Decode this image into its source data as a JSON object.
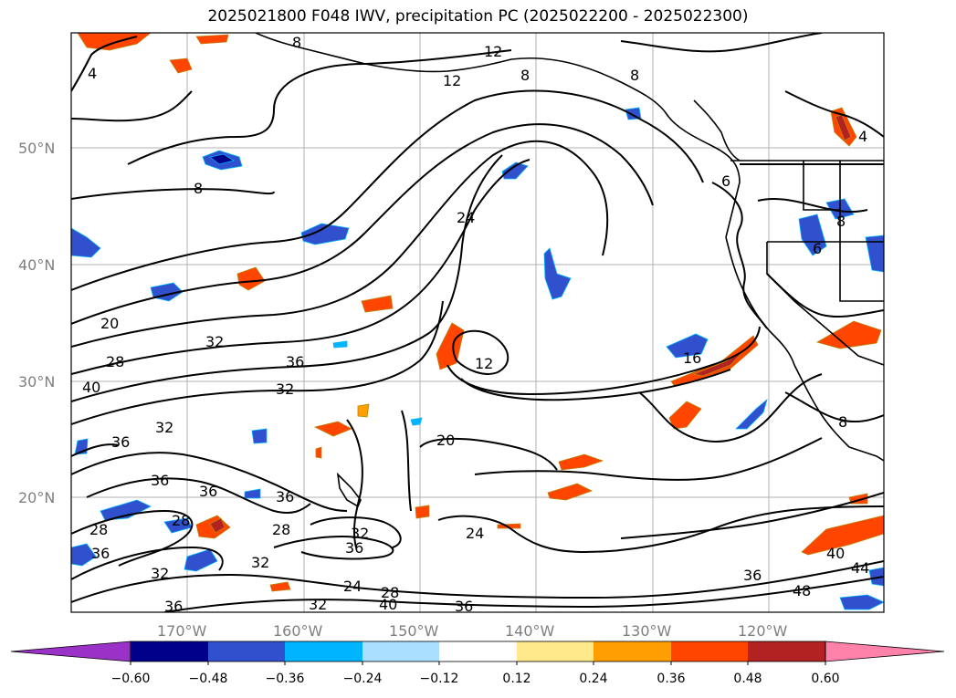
{
  "title": "2025021800 F048 IWV, precipitation PC (2025022200 - 2025022300)",
  "map": {
    "lat_labels": [
      "50°N",
      "40°N",
      "30°N",
      "20°N"
    ],
    "lon_labels": [
      "170°W",
      "160°W",
      "150°W",
      "140°W",
      "130°W",
      "120°W"
    ],
    "iwv_contour_labels": [
      "4",
      "8",
      "12",
      "8",
      "12",
      "8",
      "8",
      "8",
      "4",
      "24",
      "8",
      "6",
      "20",
      "28",
      "32",
      "36",
      "40",
      "12",
      "16",
      "32",
      "36",
      "32",
      "36",
      "36",
      "36",
      "20",
      "36",
      "28",
      "28",
      "36",
      "32",
      "28",
      "32",
      "32",
      "36",
      "24",
      "24",
      "28",
      "32",
      "40",
      "36",
      "36",
      "40",
      "44",
      "48",
      "6"
    ]
  },
  "colorbar": {
    "ticks": [
      "−0.60",
      "−0.48",
      "−0.36",
      "−0.24",
      "−0.12",
      "0.12",
      "0.24",
      "0.36",
      "0.48",
      "0.60"
    ],
    "colors": [
      "#9b32c8",
      "#00008b",
      "#3050cd",
      "#00b4ff",
      "#aadfff",
      "#ffffff",
      "#ffe98a",
      "#ff9e00",
      "#ff4500",
      "#b22222",
      "#ff82ab"
    ]
  }
}
